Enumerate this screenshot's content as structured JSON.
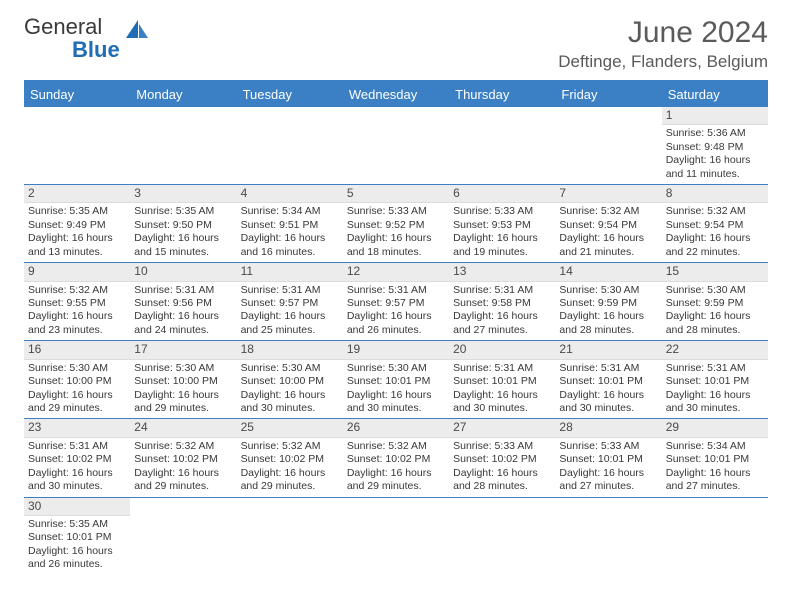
{
  "logo": {
    "word1": "General",
    "word2": "Blue"
  },
  "header": {
    "title": "June 2024",
    "location": "Deftinge, Flanders, Belgium"
  },
  "colors": {
    "accent": "#3b7fc4",
    "text": "#383838",
    "header_text": "#5a5a5a",
    "daybar": "#ececec"
  },
  "day_headers": [
    "Sunday",
    "Monday",
    "Tuesday",
    "Wednesday",
    "Thursday",
    "Friday",
    "Saturday"
  ],
  "weeks": [
    [
      {
        "n": "",
        "lines": []
      },
      {
        "n": "",
        "lines": []
      },
      {
        "n": "",
        "lines": []
      },
      {
        "n": "",
        "lines": []
      },
      {
        "n": "",
        "lines": []
      },
      {
        "n": "",
        "lines": []
      },
      {
        "n": "1",
        "lines": [
          "Sunrise: 5:36 AM",
          "Sunset: 9:48 PM",
          "Daylight: 16 hours",
          "and 11 minutes."
        ]
      }
    ],
    [
      {
        "n": "2",
        "lines": [
          "Sunrise: 5:35 AM",
          "Sunset: 9:49 PM",
          "Daylight: 16 hours",
          "and 13 minutes."
        ]
      },
      {
        "n": "3",
        "lines": [
          "Sunrise: 5:35 AM",
          "Sunset: 9:50 PM",
          "Daylight: 16 hours",
          "and 15 minutes."
        ]
      },
      {
        "n": "4",
        "lines": [
          "Sunrise: 5:34 AM",
          "Sunset: 9:51 PM",
          "Daylight: 16 hours",
          "and 16 minutes."
        ]
      },
      {
        "n": "5",
        "lines": [
          "Sunrise: 5:33 AM",
          "Sunset: 9:52 PM",
          "Daylight: 16 hours",
          "and 18 minutes."
        ]
      },
      {
        "n": "6",
        "lines": [
          "Sunrise: 5:33 AM",
          "Sunset: 9:53 PM",
          "Daylight: 16 hours",
          "and 19 minutes."
        ]
      },
      {
        "n": "7",
        "lines": [
          "Sunrise: 5:32 AM",
          "Sunset: 9:54 PM",
          "Daylight: 16 hours",
          "and 21 minutes."
        ]
      },
      {
        "n": "8",
        "lines": [
          "Sunrise: 5:32 AM",
          "Sunset: 9:54 PM",
          "Daylight: 16 hours",
          "and 22 minutes."
        ]
      }
    ],
    [
      {
        "n": "9",
        "lines": [
          "Sunrise: 5:32 AM",
          "Sunset: 9:55 PM",
          "Daylight: 16 hours",
          "and 23 minutes."
        ]
      },
      {
        "n": "10",
        "lines": [
          "Sunrise: 5:31 AM",
          "Sunset: 9:56 PM",
          "Daylight: 16 hours",
          "and 24 minutes."
        ]
      },
      {
        "n": "11",
        "lines": [
          "Sunrise: 5:31 AM",
          "Sunset: 9:57 PM",
          "Daylight: 16 hours",
          "and 25 minutes."
        ]
      },
      {
        "n": "12",
        "lines": [
          "Sunrise: 5:31 AM",
          "Sunset: 9:57 PM",
          "Daylight: 16 hours",
          "and 26 minutes."
        ]
      },
      {
        "n": "13",
        "lines": [
          "Sunrise: 5:31 AM",
          "Sunset: 9:58 PM",
          "Daylight: 16 hours",
          "and 27 minutes."
        ]
      },
      {
        "n": "14",
        "lines": [
          "Sunrise: 5:30 AM",
          "Sunset: 9:59 PM",
          "Daylight: 16 hours",
          "and 28 minutes."
        ]
      },
      {
        "n": "15",
        "lines": [
          "Sunrise: 5:30 AM",
          "Sunset: 9:59 PM",
          "Daylight: 16 hours",
          "and 28 minutes."
        ]
      }
    ],
    [
      {
        "n": "16",
        "lines": [
          "Sunrise: 5:30 AM",
          "Sunset: 10:00 PM",
          "Daylight: 16 hours",
          "and 29 minutes."
        ]
      },
      {
        "n": "17",
        "lines": [
          "Sunrise: 5:30 AM",
          "Sunset: 10:00 PM",
          "Daylight: 16 hours",
          "and 29 minutes."
        ]
      },
      {
        "n": "18",
        "lines": [
          "Sunrise: 5:30 AM",
          "Sunset: 10:00 PM",
          "Daylight: 16 hours",
          "and 30 minutes."
        ]
      },
      {
        "n": "19",
        "lines": [
          "Sunrise: 5:30 AM",
          "Sunset: 10:01 PM",
          "Daylight: 16 hours",
          "and 30 minutes."
        ]
      },
      {
        "n": "20",
        "lines": [
          "Sunrise: 5:31 AM",
          "Sunset: 10:01 PM",
          "Daylight: 16 hours",
          "and 30 minutes."
        ]
      },
      {
        "n": "21",
        "lines": [
          "Sunrise: 5:31 AM",
          "Sunset: 10:01 PM",
          "Daylight: 16 hours",
          "and 30 minutes."
        ]
      },
      {
        "n": "22",
        "lines": [
          "Sunrise: 5:31 AM",
          "Sunset: 10:01 PM",
          "Daylight: 16 hours",
          "and 30 minutes."
        ]
      }
    ],
    [
      {
        "n": "23",
        "lines": [
          "Sunrise: 5:31 AM",
          "Sunset: 10:02 PM",
          "Daylight: 16 hours",
          "and 30 minutes."
        ]
      },
      {
        "n": "24",
        "lines": [
          "Sunrise: 5:32 AM",
          "Sunset: 10:02 PM",
          "Daylight: 16 hours",
          "and 29 minutes."
        ]
      },
      {
        "n": "25",
        "lines": [
          "Sunrise: 5:32 AM",
          "Sunset: 10:02 PM",
          "Daylight: 16 hours",
          "and 29 minutes."
        ]
      },
      {
        "n": "26",
        "lines": [
          "Sunrise: 5:32 AM",
          "Sunset: 10:02 PM",
          "Daylight: 16 hours",
          "and 29 minutes."
        ]
      },
      {
        "n": "27",
        "lines": [
          "Sunrise: 5:33 AM",
          "Sunset: 10:02 PM",
          "Daylight: 16 hours",
          "and 28 minutes."
        ]
      },
      {
        "n": "28",
        "lines": [
          "Sunrise: 5:33 AM",
          "Sunset: 10:01 PM",
          "Daylight: 16 hours",
          "and 27 minutes."
        ]
      },
      {
        "n": "29",
        "lines": [
          "Sunrise: 5:34 AM",
          "Sunset: 10:01 PM",
          "Daylight: 16 hours",
          "and 27 minutes."
        ]
      }
    ],
    [
      {
        "n": "30",
        "lines": [
          "Sunrise: 5:35 AM",
          "Sunset: 10:01 PM",
          "Daylight: 16 hours",
          "and 26 minutes."
        ]
      },
      {
        "n": "",
        "lines": []
      },
      {
        "n": "",
        "lines": []
      },
      {
        "n": "",
        "lines": []
      },
      {
        "n": "",
        "lines": []
      },
      {
        "n": "",
        "lines": []
      },
      {
        "n": "",
        "lines": []
      }
    ]
  ]
}
